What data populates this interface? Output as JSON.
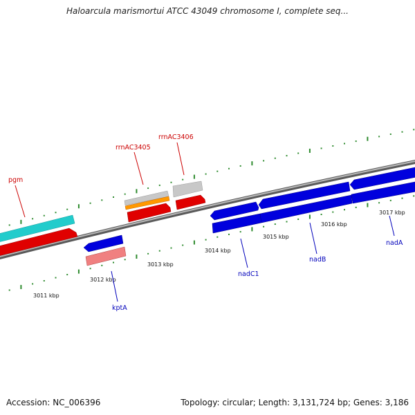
{
  "title": "Haloarcula marismortui ATCC 43049 chromosome I, complete seq...",
  "footer": {
    "accession": "Accession: NC_006396",
    "summary": "Topology: circular; Length: 3,131,724 bp; Genes: 3,186"
  },
  "colors": {
    "backbone": "#7a7a7a",
    "tick": "#2e8b2e",
    "forward_label": "#cc0000",
    "reverse_label": "#0000bb"
  },
  "ticks": [
    {
      "label": "3011 kbp"
    },
    {
      "label": "3012 kbp"
    },
    {
      "label": "3013 kbp"
    },
    {
      "label": "3014 kbp"
    },
    {
      "label": "3015 kbp"
    },
    {
      "label": "3016 kbp"
    },
    {
      "label": "3017 kbp"
    }
  ],
  "genes": [
    {
      "name": "pgm",
      "strand": "forward",
      "icon": "cds-gene-arrow",
      "color": "#e00000"
    },
    {
      "name": "rrnAC3405",
      "strand": "forward",
      "icon": "cds-gene-arrow",
      "color": "#e00000"
    },
    {
      "name": "rrnAC3406",
      "strand": "forward",
      "icon": "cds-gene-arrow",
      "color": "#e00000"
    },
    {
      "name": "kptA",
      "strand": "reverse",
      "icon": "cds-gene-arrow",
      "color": "#0000dd"
    },
    {
      "name": "nadC1",
      "strand": "reverse",
      "icon": "cds-gene-arrow",
      "color": "#0000dd"
    },
    {
      "name": "nadB",
      "strand": "reverse",
      "icon": "cds-gene-arrow",
      "color": "#0000dd"
    },
    {
      "name": "nadA",
      "strand": "reverse",
      "icon": "cds-gene-arrow",
      "color": "#0000dd"
    }
  ]
}
